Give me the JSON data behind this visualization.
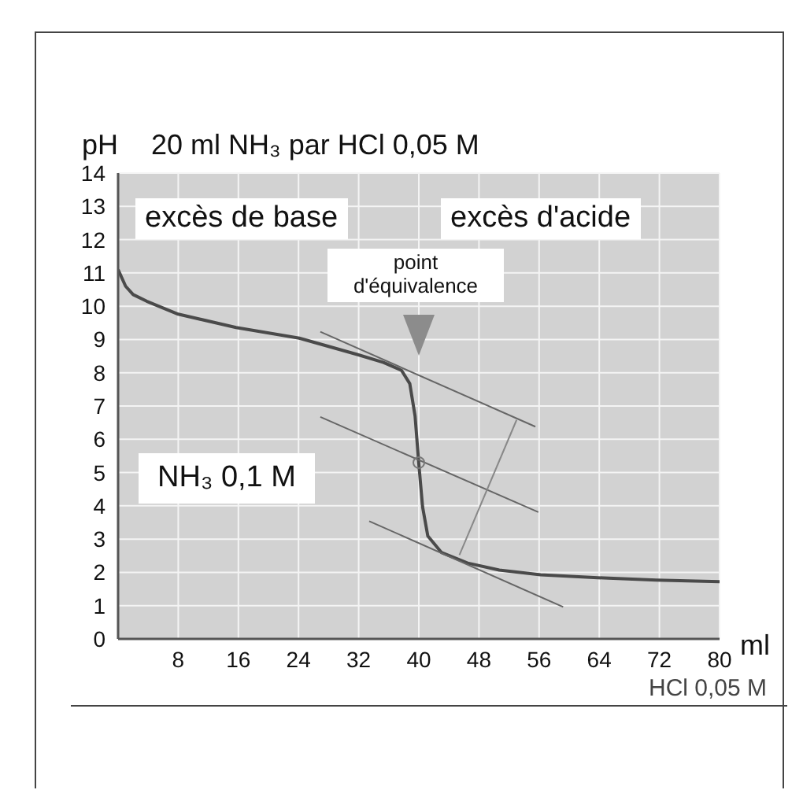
{
  "chart_data": {
    "type": "line",
    "title": "20 ml NH₃ par HCl 0,05 M",
    "ylabel": "pH",
    "xlabel": "ml",
    "annotations": [
      "HCl 0,05 M",
      "excès de base",
      "excès d'acide",
      "point d'équivalence",
      "NH₃  0,1 M"
    ],
    "xlim": [
      0,
      80
    ],
    "xticks": [
      8,
      16,
      24,
      32,
      40,
      48,
      56,
      64,
      72,
      80
    ],
    "ylim": [
      0,
      14
    ],
    "yticks": [
      0,
      1,
      2,
      3,
      4,
      5,
      6,
      7,
      8,
      9,
      10,
      11,
      12,
      13,
      14
    ],
    "grid": true,
    "series": [
      {
        "type": "line",
        "color": "#4a4a4a",
        "x": [
          0,
          1,
          2,
          3.8,
          8,
          15.7,
          24.1,
          31.8,
          35.3,
          37.7,
          38.8,
          39.5,
          40,
          40.5,
          41.2,
          43,
          46.5,
          50.7,
          56.2,
          64.6,
          71.6,
          80
        ],
        "values": [
          11.1,
          10.6,
          10.35,
          10.15,
          9.76,
          9.36,
          9.04,
          8.55,
          8.31,
          8.07,
          7.67,
          6.7,
          5.26,
          3.97,
          3.09,
          2.6,
          2.28,
          2.07,
          1.93,
          1.83,
          1.77,
          1.72
        ]
      },
      {
        "type": "line",
        "color": "#666666",
        "x": [
          26.9,
          55.5
        ],
        "values": [
          9.23,
          6.38
        ]
      },
      {
        "type": "line",
        "color": "#666666",
        "x": [
          26.9,
          55.9
        ],
        "values": [
          6.67,
          3.81
        ]
      },
      {
        "type": "line",
        "color": "#666666",
        "x": [
          33.4,
          59.2
        ],
        "values": [
          3.54,
          0.96
        ]
      },
      {
        "type": "line",
        "color": "#888888",
        "x": [
          45.4,
          53
        ],
        "values": [
          2.52,
          6.58
        ]
      },
      {
        "type": "scatter",
        "color": "#777777",
        "marker": "circle",
        "x": [
          40
        ],
        "values": [
          5.3
        ]
      }
    ]
  }
}
